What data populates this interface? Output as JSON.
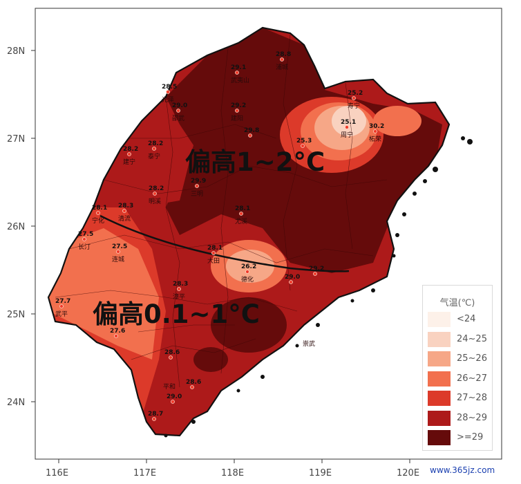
{
  "axes": {
    "lat_ticks": [
      "28N",
      "27N",
      "26N",
      "25N",
      "24N"
    ],
    "lon_ticks": [
      "116E",
      "117E",
      "118E",
      "119E",
      "120E"
    ]
  },
  "anomaly_labels": [
    "偏高1~2°C",
    "偏高0.1~1°C"
  ],
  "legend": {
    "title": "气温(℃)",
    "items": [
      {
        "label": "<24",
        "color": "#fdf1e9"
      },
      {
        "label": "24~25",
        "color": "#f9d2c0"
      },
      {
        "label": "25~26",
        "color": "#f6a787"
      },
      {
        "label": "26~27",
        "color": "#f2704e"
      },
      {
        "label": "27~28",
        "color": "#dc3a2a"
      },
      {
        "label": "28~29",
        "color": "#ad1a1a"
      },
      {
        "label": ">=29",
        "color": "#650b0b"
      }
    ]
  },
  "stations": [
    {
      "value": "28.8",
      "name": "浦城"
    },
    {
      "value": "29.1",
      "name": "武夷山"
    },
    {
      "value": "28.5",
      "name": "光泽"
    },
    {
      "value": "29.0",
      "name": "邵武"
    },
    {
      "value": "29.2",
      "name": "建阳"
    },
    {
      "value": "28.2",
      "name": "建宁"
    },
    {
      "value": "28.2",
      "name": "泰宁"
    },
    {
      "value": "28.2",
      "name": "明溪"
    },
    {
      "value": "25.3",
      "name": ""
    },
    {
      "value": "25.1",
      "name": "周宁"
    },
    {
      "value": "25.2",
      "name": "寿宁"
    },
    {
      "value": "30.2",
      "name": "柘荣"
    },
    {
      "value": "29.8",
      "name": ""
    },
    {
      "value": "27.5",
      "name": "长汀"
    },
    {
      "value": "28.1",
      "name": "宁化"
    },
    {
      "value": "28.3",
      "name": "清流"
    },
    {
      "value": "27.5",
      "name": "连城"
    },
    {
      "value": "29.9",
      "name": "三明"
    },
    {
      "value": "28.1",
      "name": "尤溪"
    },
    {
      "value": "28.1",
      "name": "大田"
    },
    {
      "value": "26.2",
      "name": "德化"
    },
    {
      "value": "29.2",
      "name": ""
    },
    {
      "value": "29.0",
      "name": ""
    },
    {
      "value": "27.7",
      "name": "武平"
    },
    {
      "value": "27.6",
      "name": ""
    },
    {
      "value": "28.3",
      "name": "漳平"
    },
    {
      "value": "28.6",
      "name": ""
    },
    {
      "value": "28.6",
      "name": ""
    },
    {
      "value": "29.0",
      "name": ""
    },
    {
      "value": "28.7",
      "name": ""
    },
    {
      "value": "",
      "name": "崇武"
    },
    {
      "value": "",
      "name": "平和"
    }
  ],
  "chart_data": {
    "type": "choropleth",
    "legend_title": "气温(℃)",
    "classes": [
      "<24",
      "24~25",
      "25~26",
      "26~27",
      "27~28",
      "28~29",
      ">=29"
    ],
    "anomaly_zones": [
      "偏高1~2°C",
      "偏高0.1~1°C"
    ],
    "lon_range": [
      116,
      120
    ],
    "lat_range": [
      24,
      28
    ],
    "legend_position": "bottom-right"
  },
  "watermark": "www.365jz.com"
}
